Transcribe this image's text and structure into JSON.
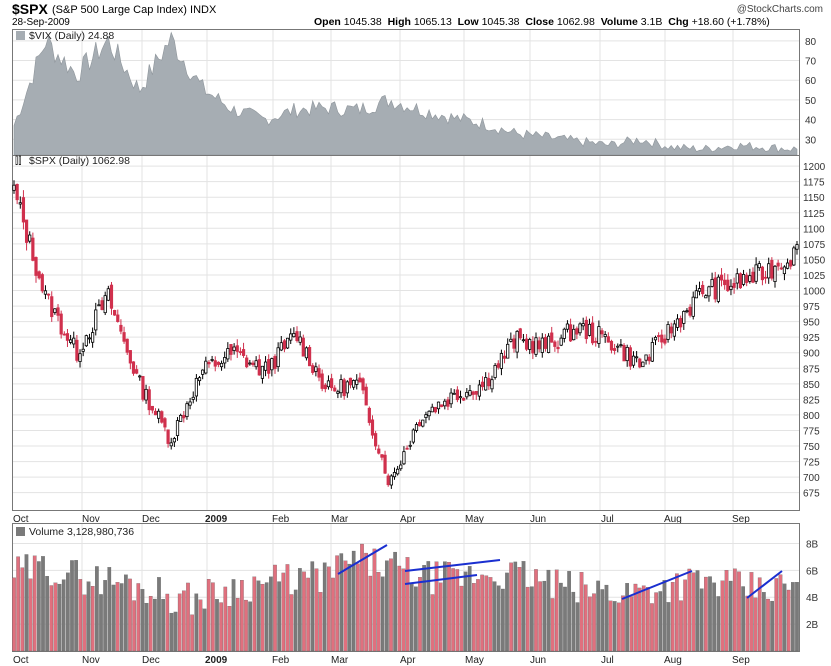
{
  "header": {
    "symbol": "$SPX",
    "name": "(S&P 500 Large Cap Index)",
    "exchange": "INDX",
    "date": "28-Sep-2009",
    "open_label": "Open",
    "open": "1045.38",
    "high_label": "High",
    "high": "1065.13",
    "low_label": "Low",
    "low": "1045.38",
    "close_label": "Close",
    "close": "1062.98",
    "volume_label": "Volume",
    "volume": "3.1B",
    "chg_label": "Chg",
    "chg": "+18.60 (+1.78%)",
    "brand": "@StockCharts.com"
  },
  "chart_data": [
    {
      "type": "area",
      "title": "$VIX (Daily) 24.88",
      "ylim": [
        22,
        85
      ],
      "y_ticks": [
        "80",
        "70",
        "60",
        "50",
        "40",
        "30"
      ],
      "x": [
        "Oct",
        "Oct",
        "Nov",
        "Nov",
        "Nov",
        "Nov",
        "Dec",
        "Dec",
        "Jan",
        "Jan",
        "Feb",
        "Feb",
        "Mar",
        "Mar",
        "Apr",
        "Apr",
        "May",
        "May",
        "Jun",
        "Jun",
        "Jul",
        "Jul",
        "Aug",
        "Aug",
        "Sep",
        "Sep"
      ],
      "values": [
        37,
        80,
        63,
        80,
        55,
        81,
        56,
        45,
        40,
        45,
        46,
        45,
        50,
        45,
        41,
        38,
        33,
        31,
        29,
        27,
        30,
        26,
        25,
        27,
        26,
        25
      ],
      "color": "#a6adb3"
    },
    {
      "type": "candlestick",
      "title": "$SPX (Daily) 1062.98",
      "ylim": [
        660,
        1205
      ],
      "y_ticks": [
        "1200",
        "1175",
        "1150",
        "1125",
        "1100",
        "1075",
        "1050",
        "1025",
        "1000",
        "975",
        "950",
        "925",
        "900",
        "875",
        "850",
        "825",
        "800",
        "775",
        "750",
        "725",
        "700",
        "675"
      ],
      "x_ticks": [
        "Oct",
        "Nov",
        "Dec",
        "2009",
        "Feb",
        "Mar",
        "Apr",
        "May",
        "Jun",
        "Jul",
        "Aug",
        "Sep"
      ],
      "x": [
        "Oct",
        "Oct",
        "Oct",
        "Nov",
        "Nov",
        "Nov",
        "Dec",
        "Dec",
        "Jan",
        "Jan",
        "Feb",
        "Feb",
        "Mar",
        "Mar",
        "Apr",
        "Apr",
        "May",
        "May",
        "Jun",
        "Jun",
        "Jul",
        "Jul",
        "Aug",
        "Aug",
        "Sep",
        "Sep"
      ],
      "values": [
        1160,
        990,
        900,
        990,
        850,
        760,
        870,
        900,
        870,
        930,
        840,
        850,
        690,
        800,
        830,
        850,
        920,
        910,
        940,
        920,
        880,
        940,
        1000,
        1010,
        1030,
        1063
      ],
      "up_color": "#000000",
      "down_color": "#d0304d"
    },
    {
      "type": "bar",
      "title": "Volume 3,128,980,736",
      "ylim": [
        0,
        9
      ],
      "y_ticks": [
        "8B",
        "6B",
        "4B",
        "2B"
      ],
      "x": [
        "Oct",
        "Oct",
        "Nov",
        "Nov",
        "Dec",
        "Dec",
        "Jan",
        "Jan",
        "Feb",
        "Feb",
        "Mar",
        "Mar",
        "Apr",
        "Apr",
        "May",
        "May",
        "Jun",
        "Jun",
        "Jul",
        "Jul",
        "Aug",
        "Aug",
        "Sep",
        "Sep"
      ],
      "values": [
        5.8,
        6.2,
        5.5,
        5.2,
        4.6,
        3.8,
        4.4,
        5.0,
        5.3,
        5.5,
        6.8,
        6.3,
        5.5,
        5.4,
        5.8,
        5.6,
        4.8,
        4.5,
        4.4,
        4.8,
        5.2,
        4.9,
        4.5,
        4.9
      ],
      "up_color": "#7a7a7a",
      "down_color": "#e0707e",
      "trendlines_color": "#1a2fd0"
    }
  ]
}
